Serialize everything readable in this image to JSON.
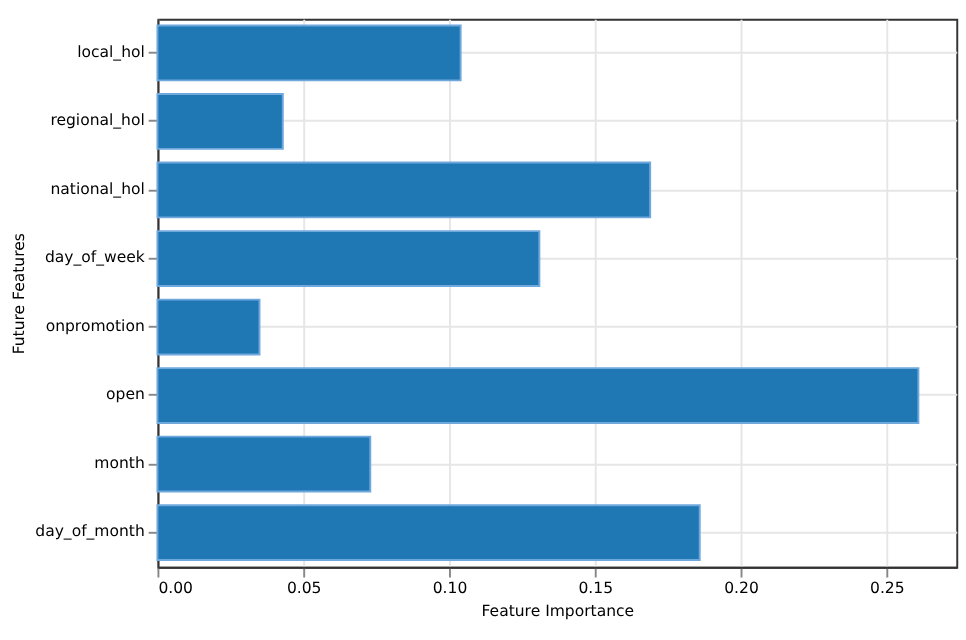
{
  "chart_data": {
    "type": "bar",
    "orientation": "horizontal",
    "xlabel": "Feature Importance",
    "ylabel": "Future Features",
    "categories": [
      "local_hol",
      "regional_hol",
      "national_hol",
      "day_of_week",
      "onpromotion",
      "open",
      "month",
      "day_of_month"
    ],
    "values": [
      0.104,
      0.043,
      0.169,
      0.131,
      0.035,
      0.261,
      0.073,
      0.186
    ],
    "color": "#1f77b4",
    "xlim": [
      0,
      0.274
    ],
    "xticks": [
      {
        "value": 0,
        "label": "0.00"
      },
      {
        "value": 0.05,
        "label": "0.05"
      },
      {
        "value": 0.1,
        "label": "0.10"
      },
      {
        "value": 0.15,
        "label": "0.15"
      },
      {
        "value": 0.2,
        "label": "0.20"
      },
      {
        "value": 0.25,
        "label": "0.25"
      }
    ],
    "grid": true
  }
}
